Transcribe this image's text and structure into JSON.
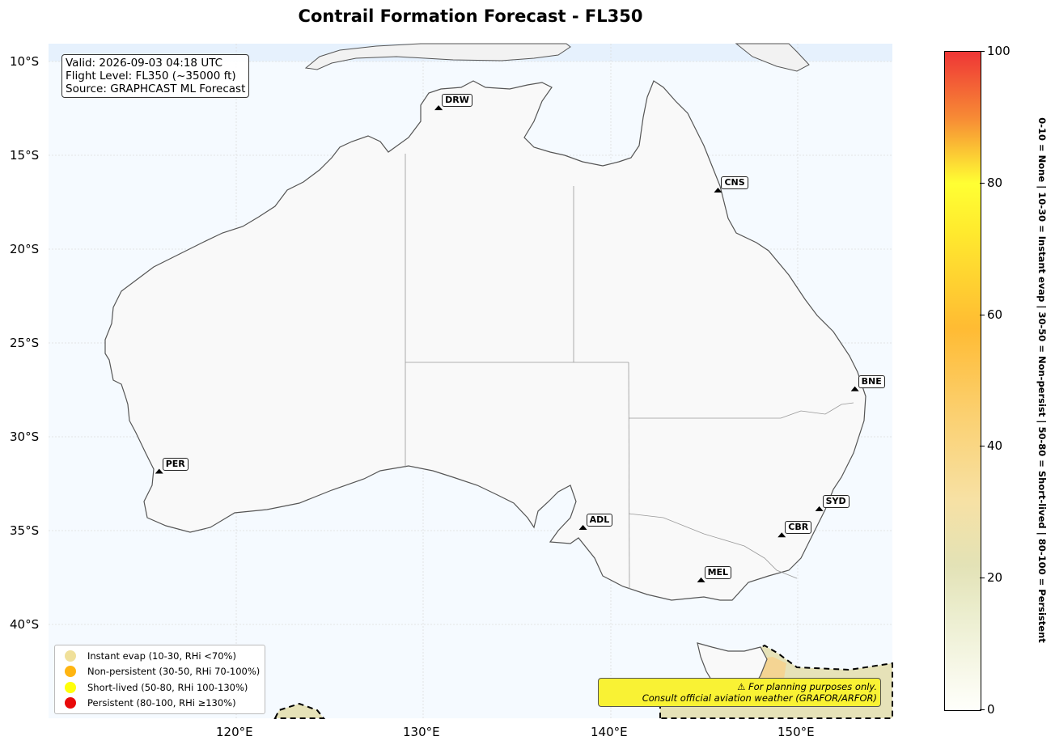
{
  "title": "Contrail Formation Forecast - FL350",
  "info": {
    "valid": "Valid: 2026-09-03 04:18 UTC",
    "flight_level": "Flight Level: FL350 (~35000 ft)",
    "source": "Source: GRAPHCAST ML Forecast"
  },
  "axes": {
    "lat_ticks": [
      "10°S",
      "15°S",
      "20°S",
      "25°S",
      "30°S",
      "35°S",
      "40°S"
    ],
    "lon_ticks": [
      "120°E",
      "130°E",
      "140°E",
      "150°E"
    ],
    "lon_range": [
      110,
      155
    ],
    "lat_range": [
      -9,
      -45
    ]
  },
  "cities": [
    {
      "code": "DRW",
      "lon": 130.8,
      "lat": -12.5
    },
    {
      "code": "CNS",
      "lon": 145.7,
      "lat": -16.9
    },
    {
      "code": "BNE",
      "lon": 153.0,
      "lat": -27.5
    },
    {
      "code": "PER",
      "lon": 115.9,
      "lat": -31.9
    },
    {
      "code": "SYD",
      "lon": 151.1,
      "lat": -33.9
    },
    {
      "code": "CBR",
      "lon": 149.1,
      "lat": -35.3
    },
    {
      "code": "ADL",
      "lon": 138.5,
      "lat": -34.9
    },
    {
      "code": "MEL",
      "lon": 144.8,
      "lat": -37.7
    }
  ],
  "legend": [
    {
      "label": "Instant evap (10-30, RHi <70%)",
      "color": "#f0e09a"
    },
    {
      "label": "Non-persistent (30-50, RHi 70-100%)",
      "color": "#ffb511"
    },
    {
      "label": "Short-lived (50-80, RHi 100-130%)",
      "color": "#ffff0a"
    },
    {
      "label": "Persistent (80-100, RHi ≥130%)",
      "color": "#e80a0a"
    }
  ],
  "disclaimer": {
    "line1": "⚠ For planning purposes only.",
    "line2": "Consult official aviation weather (GRAFOR/ARFOR)"
  },
  "colorbar": {
    "ticks": [
      "0",
      "20",
      "40",
      "60",
      "80",
      "100"
    ],
    "label": "0-10 = None  |  10-30 = Instant evap  |  30-50 = Non-persist  |  50-80 = Short-lived  |  80-100 = Persistent"
  }
}
